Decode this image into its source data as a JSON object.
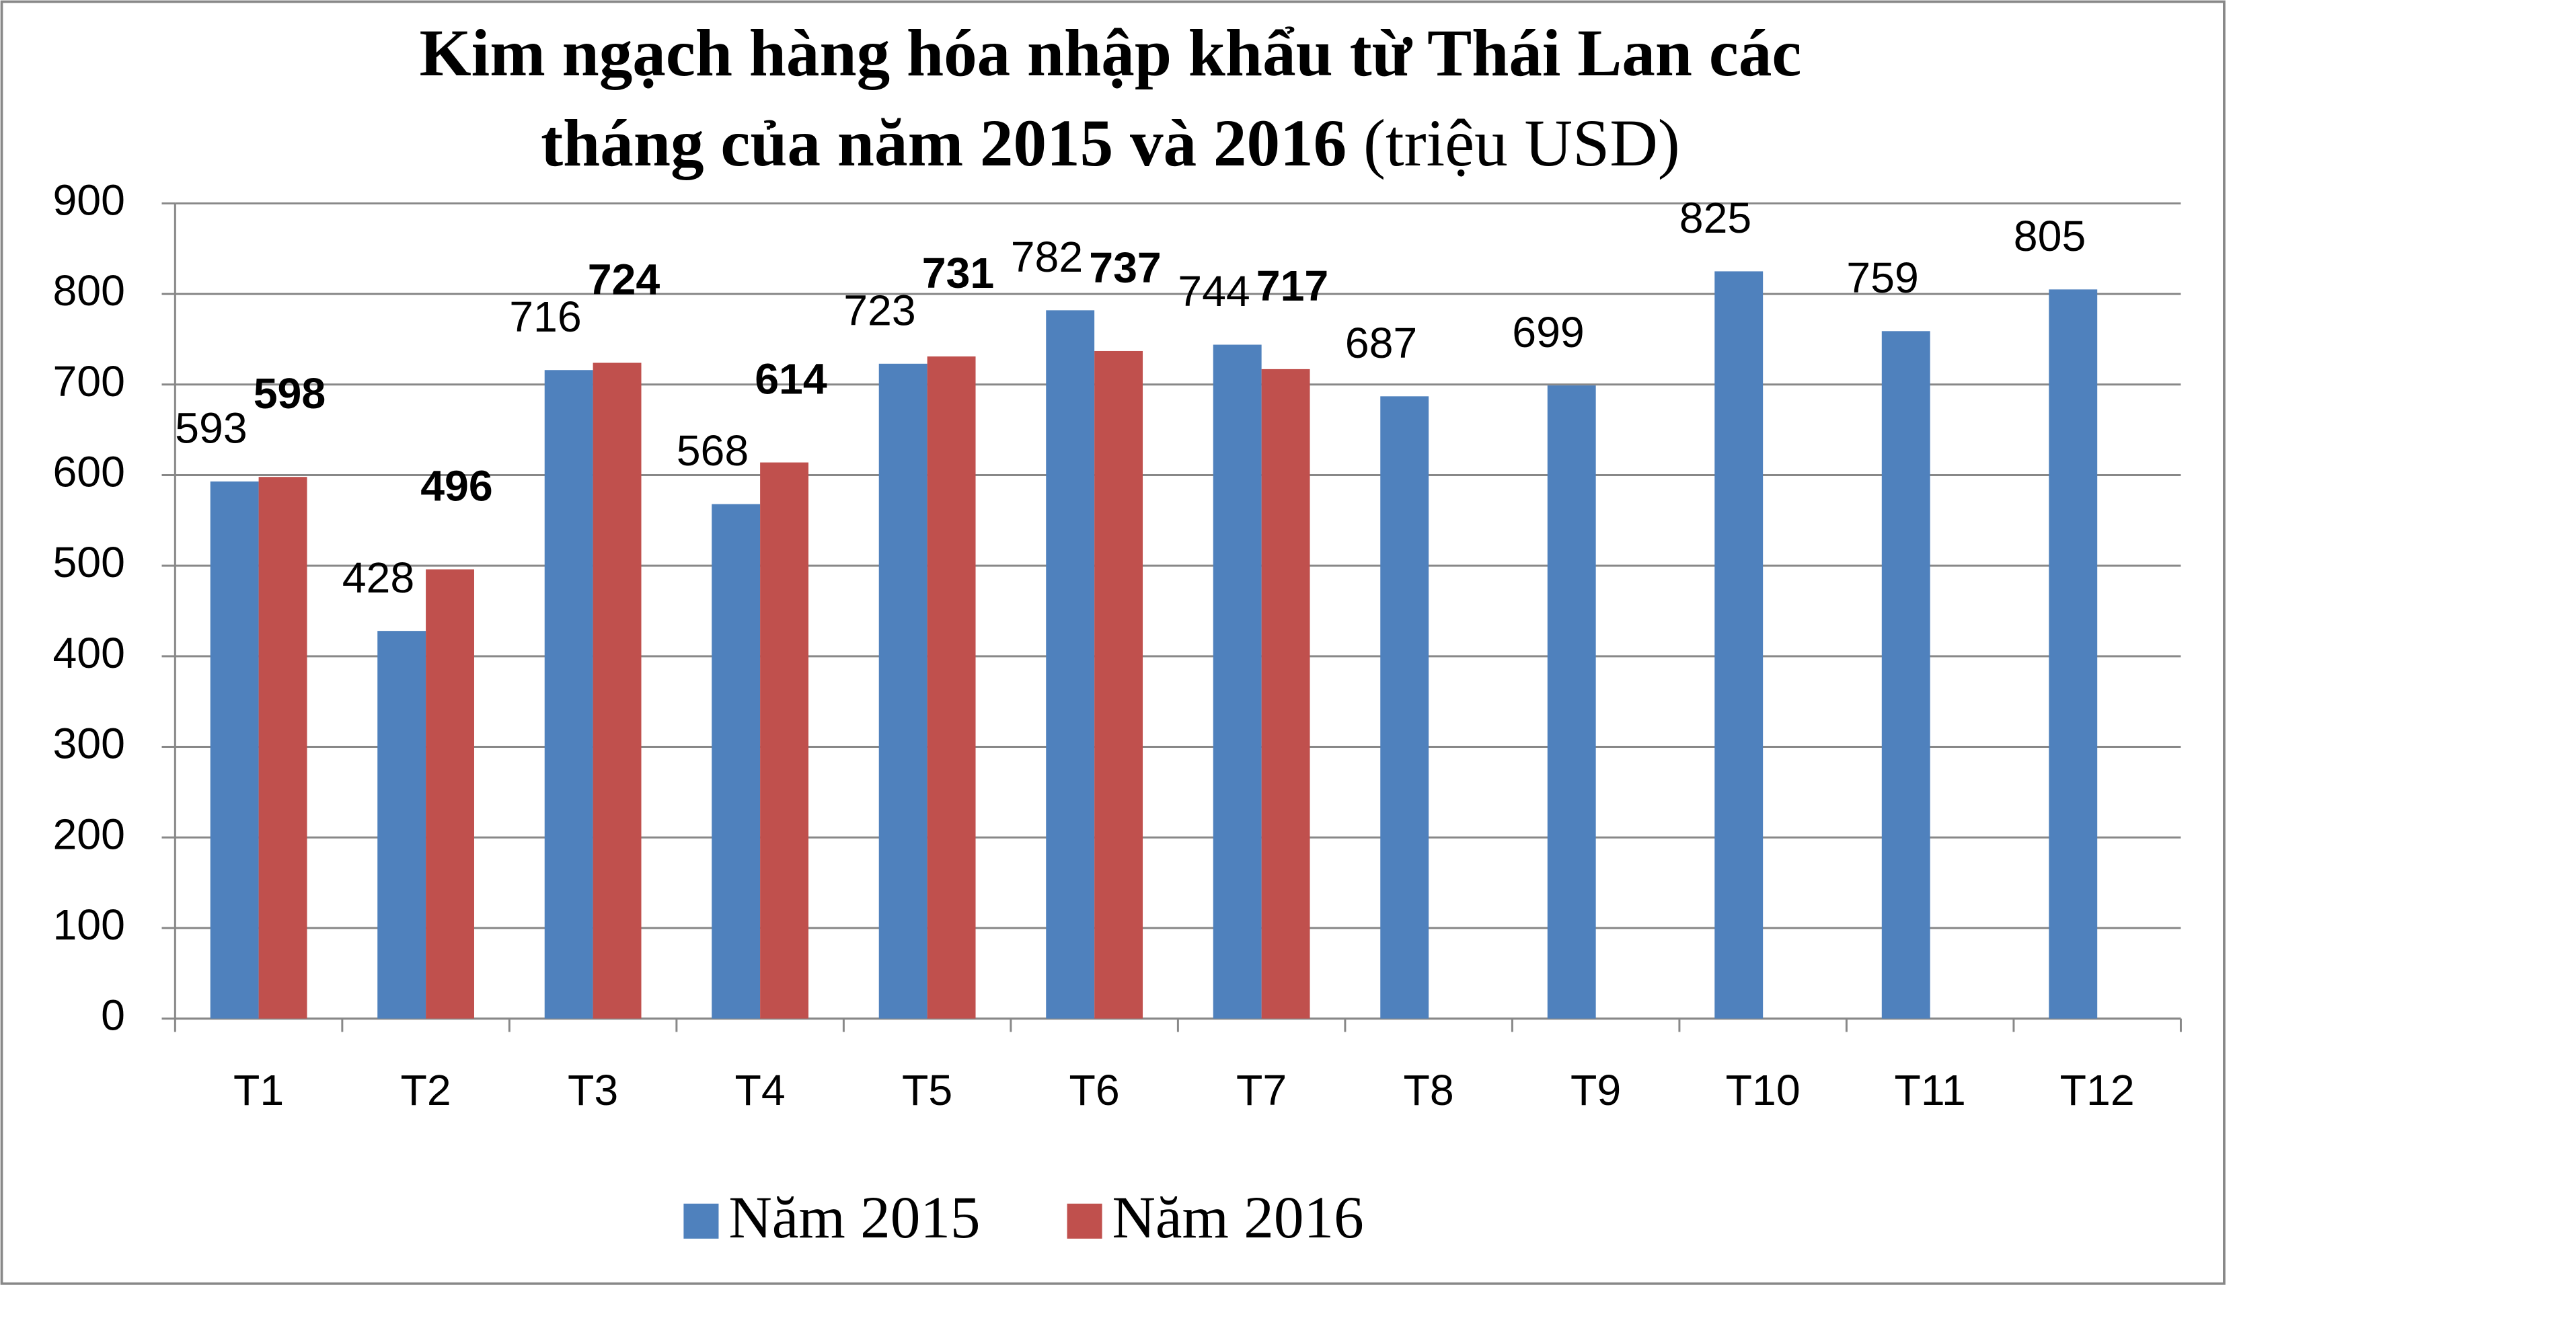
{
  "chart_data": {
    "type": "bar",
    "title_lines": [
      "Kim ngạch hàng hóa nhập khẩu từ Thái Lan các",
      "tháng của năm 2015 và 2016"
    ],
    "title_unit": "(triệu USD)",
    "categories": [
      "T1",
      "T2",
      "T3",
      "T4",
      "T5",
      "T6",
      "T7",
      "T8",
      "T9",
      "T10",
      "T11",
      "T12"
    ],
    "series": [
      {
        "name": "Năm 2015",
        "color": "#4f81bd",
        "values": [
          593,
          428,
          716,
          568,
          723,
          782,
          744,
          687,
          699,
          825,
          759,
          805
        ]
      },
      {
        "name": "Năm 2016",
        "color": "#c0504d",
        "values": [
          598,
          496,
          724,
          614,
          731,
          737,
          717,
          null,
          null,
          null,
          null,
          null
        ]
      }
    ],
    "ylim": [
      0,
      900
    ],
    "yticks": [
      0,
      100,
      200,
      300,
      400,
      500,
      600,
      700,
      800,
      900
    ],
    "grid": true,
    "legend": "bottom"
  }
}
